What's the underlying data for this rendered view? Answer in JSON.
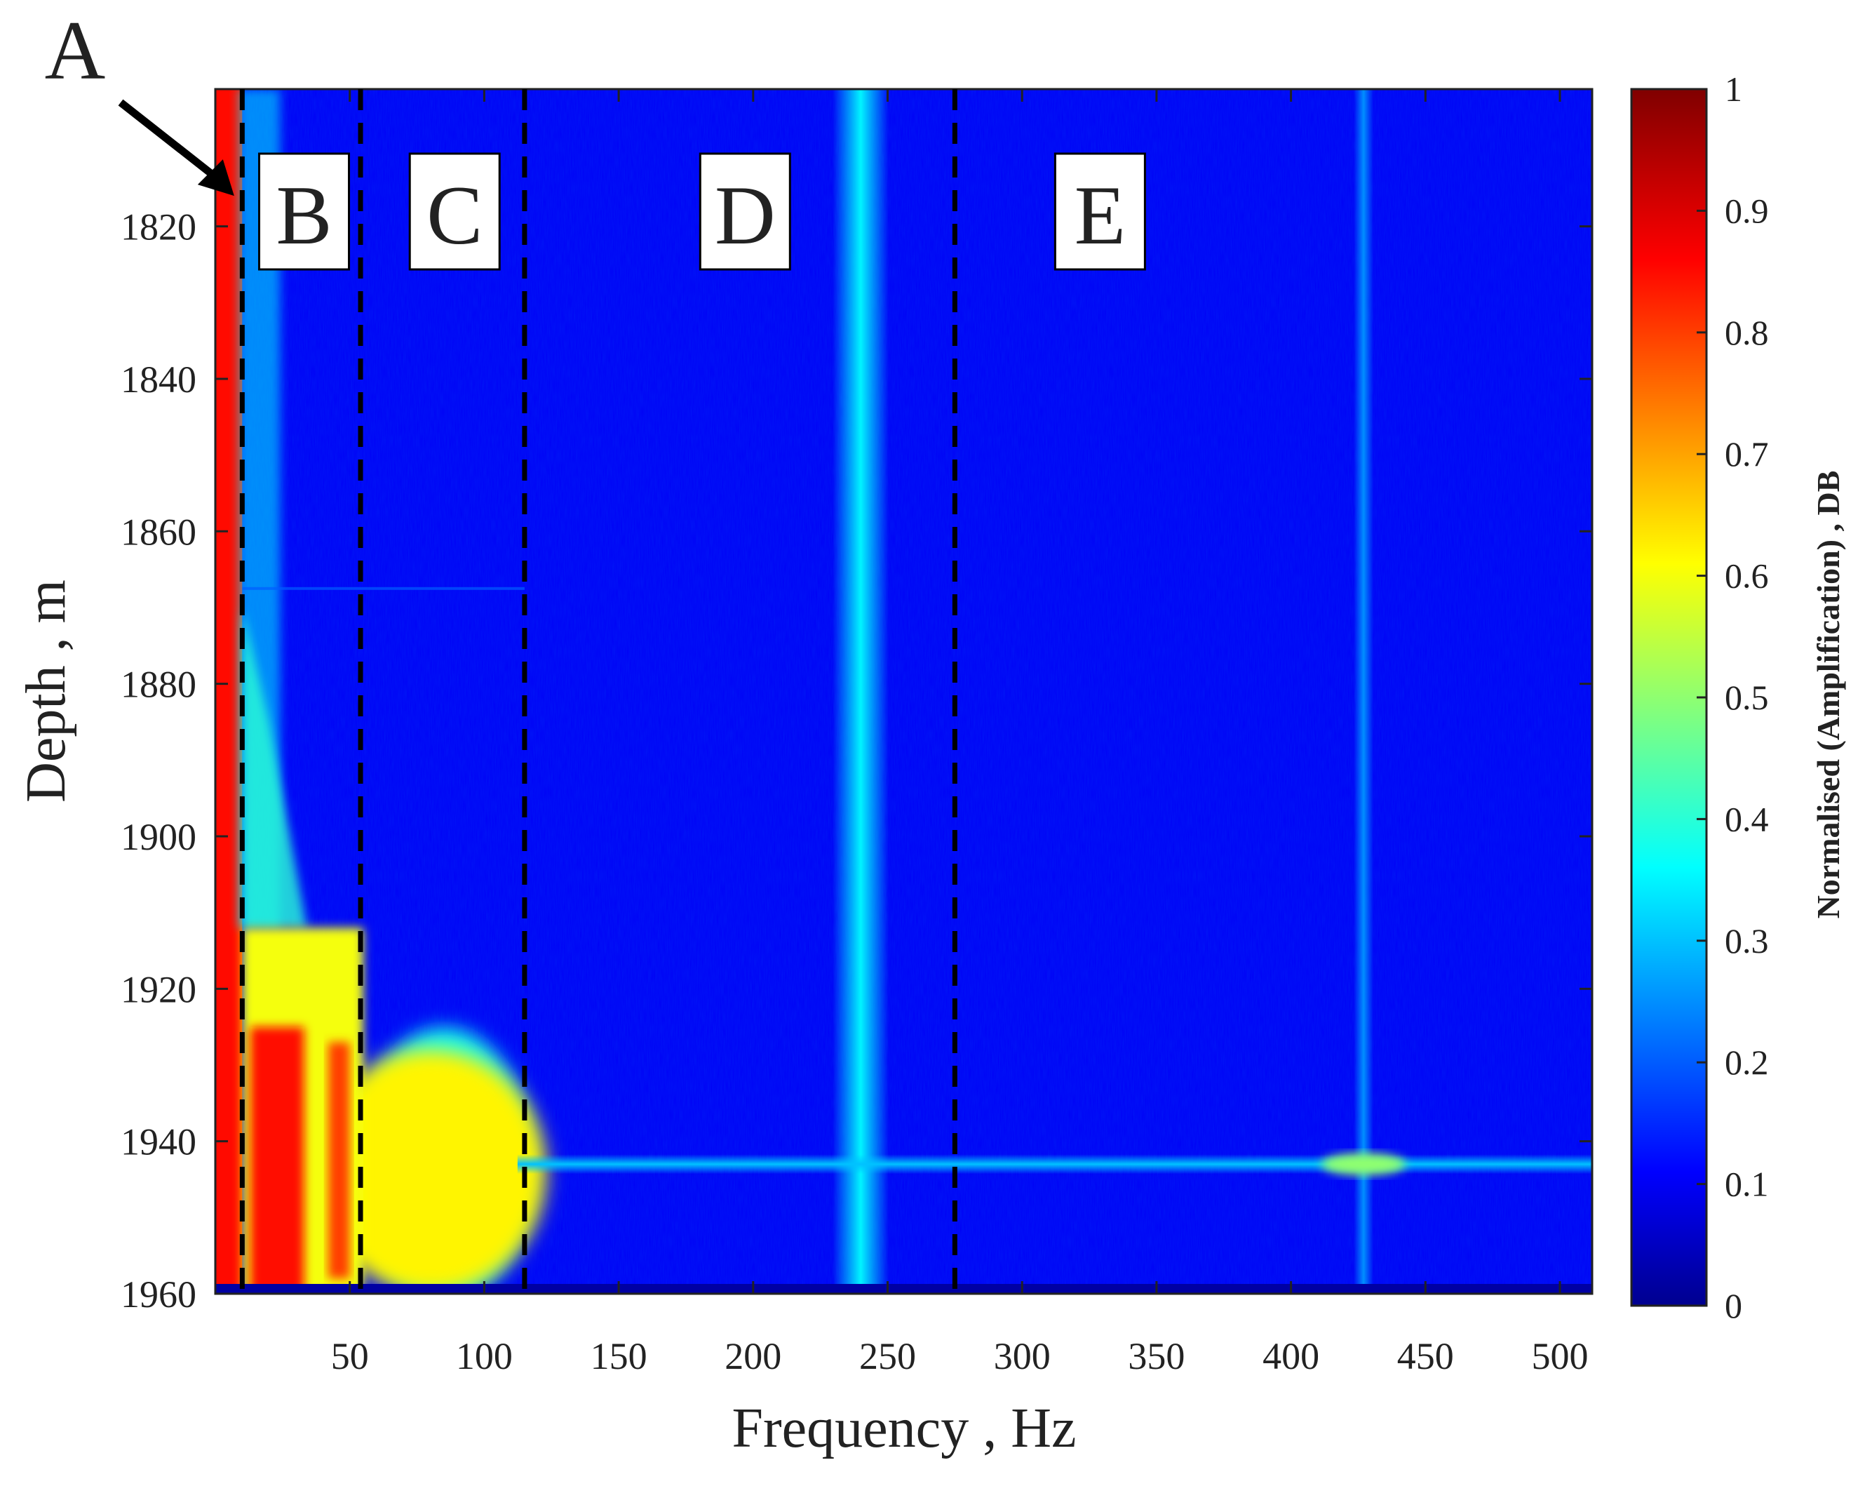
{
  "chart_data": {
    "type": "heatmap",
    "title": "",
    "xlabel": "Frequency , Hz",
    "ylabel": "Depth , m",
    "xlim": [
      0,
      512
    ],
    "ylim": [
      1802,
      1960
    ],
    "y_reversed": true,
    "x_ticks": [
      50,
      100,
      150,
      200,
      250,
      300,
      350,
      400,
      450,
      500
    ],
    "x_tick_labels": [
      "50",
      "100",
      "150",
      "200",
      "250",
      "300",
      "350",
      "400",
      "450",
      "500"
    ],
    "y_ticks": [
      1820,
      1840,
      1860,
      1880,
      1900,
      1920,
      1940,
      1960
    ],
    "y_tick_labels": [
      "1820",
      "1840",
      "1860",
      "1880",
      "1900",
      "1920",
      "1940",
      "1960"
    ],
    "colorbar": {
      "label": "Normalised (Amplification) , DB",
      "range": [
        0,
        1
      ],
      "ticks": [
        0,
        0.1,
        0.2,
        0.3,
        0.4,
        0.5,
        0.6,
        0.7,
        0.8,
        0.9,
        1
      ],
      "tick_labels": [
        "0",
        "0.1",
        "0.2",
        "0.3",
        "0.4",
        "0.5",
        "0.6",
        "0.7",
        "0.8",
        "0.9",
        "1"
      ],
      "colormap": "jet"
    },
    "colormap_stops": [
      {
        "v": 0.0,
        "color": "#00008f"
      },
      {
        "v": 0.11,
        "color": "#0000ff"
      },
      {
        "v": 0.36,
        "color": "#00ffff"
      },
      {
        "v": 0.61,
        "color": "#ffff00"
      },
      {
        "v": 0.86,
        "color": "#ff0000"
      },
      {
        "v": 1.0,
        "color": "#800000"
      }
    ],
    "background_level": 0.1,
    "features": [
      {
        "name": "low-frequency band",
        "x_range": [
          0,
          10
        ],
        "y_range": [
          1802,
          1960
        ],
        "value": 0.85
      },
      {
        "name": "mid-frequency blob",
        "x_range": [
          10,
          55
        ],
        "y_range": [
          1912,
          1960
        ],
        "value": 0.8
      },
      {
        "name": "transition zone",
        "x_range": [
          55,
          115
        ],
        "y_range": [
          1925,
          1960
        ],
        "value": 0.5
      },
      {
        "name": "vertical streak at 240 Hz",
        "x": 240,
        "y_range": [
          1802,
          1960
        ],
        "value": 0.35
      },
      {
        "name": "vertical streak at 427 Hz",
        "x": 427,
        "y_range": [
          1802,
          1960
        ],
        "value": 0.25
      },
      {
        "name": "horizontal event at 1943 m",
        "x_range": [
          115,
          512
        ],
        "y": 1943,
        "value": 0.3
      },
      {
        "name": "hot spot",
        "x": 427,
        "y": 1943,
        "value": 0.5
      }
    ],
    "region_boundaries_hz": [
      10,
      54,
      115,
      275
    ],
    "regions": [
      {
        "label": "B",
        "x": 33
      },
      {
        "label": "C",
        "x": 89
      },
      {
        "label": "D",
        "x": 197
      },
      {
        "label": "E",
        "x": 329
      }
    ],
    "annotations": [
      {
        "label": "A",
        "target_x": 7,
        "target_y": 1816
      }
    ]
  }
}
